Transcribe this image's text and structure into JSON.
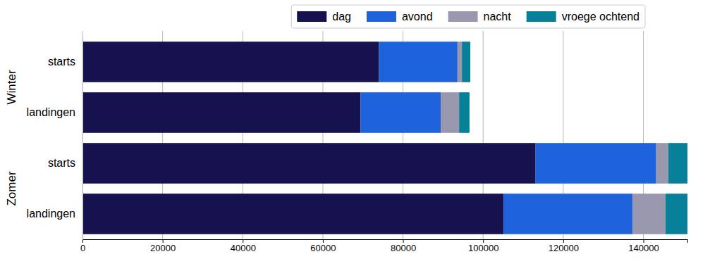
{
  "chart_data": {
    "type": "bar",
    "orientation": "horizontal",
    "stacked": true,
    "grid": true,
    "legend": "upper center",
    "categories": [
      "starts",
      "landingen",
      "starts",
      "landingen"
    ],
    "category_groups": [
      "Winter",
      "Winter",
      "Zomer",
      "Zomer"
    ],
    "series": [
      {
        "name": "dag",
        "color": "#161250",
        "values": [
          74000,
          69400,
          113100,
          105100
        ]
      },
      {
        "name": "avond",
        "color": "#1f63dc",
        "values": [
          19600,
          20000,
          30100,
          32200
        ]
      },
      {
        "name": "nacht",
        "color": "#9a98ae",
        "values": [
          1100,
          4600,
          3000,
          8200
        ]
      },
      {
        "name": "vroege ochtend",
        "color": "#08809a",
        "values": [
          2100,
          2600,
          4800,
          5500
        ]
      }
    ],
    "xlim": [
      0,
      151000
    ],
    "xticks": [
      0,
      20000,
      40000,
      60000,
      80000,
      100000,
      120000,
      140000
    ]
  }
}
